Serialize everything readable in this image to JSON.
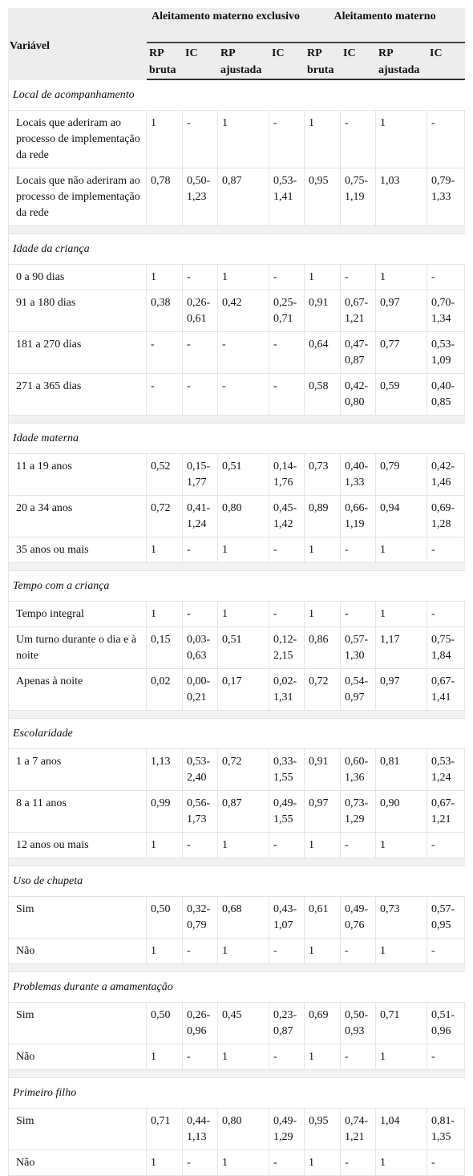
{
  "table": {
    "headers": {
      "variavel": "Variável",
      "group1": "Aleitamento materno exclusivo",
      "group2": "Aleitamento materno",
      "rp_bruta": "RP bruta",
      "ic": "IC",
      "rp_ajustada": "RP ajustada"
    },
    "sections": [
      {
        "title": "Local de acompanhamento",
        "rows": [
          {
            "label": "Locais que aderiram ao processo de implementação da rede",
            "values": [
              "1",
              "-",
              "1",
              "-",
              "1",
              "-",
              "1",
              "-"
            ]
          },
          {
            "label": "Locais que não aderiram ao processo de implementação da rede",
            "values": [
              "0,78",
              "0,50-1,23",
              "0,87",
              "0,53-1,41",
              "0,95",
              "0,75-1,19",
              "1,03",
              "0,79-1,33"
            ]
          }
        ]
      },
      {
        "title": "Idade da criança",
        "rows": [
          {
            "label": "0 a 90 dias",
            "values": [
              "1",
              "-",
              "1",
              "-",
              "1",
              "-",
              "1",
              "-"
            ]
          },
          {
            "label": "91 a 180 dias",
            "values": [
              "0,38",
              "0,26-0,61",
              "0,42",
              "0,25-0,71",
              "0,91",
              "0,67-1,21",
              "0,97",
              "0,70-1,34"
            ]
          },
          {
            "label": "181 a 270 dias",
            "values": [
              "-",
              "-",
              "-",
              "-",
              "0,64",
              "0,47-0,87",
              "0,77",
              "0,53-1,09"
            ]
          },
          {
            "label": "271 a 365 dias",
            "values": [
              "-",
              "-",
              "-",
              "-",
              "0,58",
              "0,42-0,80",
              "0,59",
              "0,40-0,85"
            ]
          }
        ]
      },
      {
        "title": "Idade materna",
        "rows": [
          {
            "label": "11 a 19 anos",
            "values": [
              "0,52",
              "0,15-1,77",
              "0,51",
              "0,14-1,76",
              "0,73",
              "0,40-1,33",
              "0,79",
              "0,42-1,46"
            ]
          },
          {
            "label": "20 a 34 anos",
            "values": [
              "0,72",
              "0,41-1,24",
              "0,80",
              "0,45-1,42",
              "0,89",
              "0,66-1,19",
              "0,94",
              "0,69-1,28"
            ]
          },
          {
            "label": "35 anos ou mais",
            "values": [
              "1",
              "-",
              "1",
              "-",
              "1",
              "-",
              "1",
              "-"
            ]
          }
        ]
      },
      {
        "title": "Tempo com a criança",
        "rows": [
          {
            "label": "Tempo integral",
            "values": [
              "1",
              "-",
              "1",
              "-",
              "1",
              "-",
              "1",
              "-"
            ]
          },
          {
            "label": "Um turno durante o dia e à noite",
            "values": [
              "0,15",
              "0,03-0,63",
              "0,51",
              "0,12-2,15",
              "0,86",
              "0,57-1,30",
              "1,17",
              "0,75-1,84"
            ]
          },
          {
            "label": "Apenas à noite",
            "values": [
              "0,02",
              "0,00-0,21",
              "0,17",
              "0,02-1,31",
              "0,72",
              "0,54-0,97",
              "0,97",
              "0,67-1,41"
            ]
          }
        ]
      },
      {
        "title": "Escolaridade",
        "rows": [
          {
            "label": "1 a 7 anos",
            "values": [
              "1,13",
              "0,53-2,40",
              "0,72",
              "0,33-1,55",
              "0,91",
              "0,60-1,36",
              "0,81",
              "0,53-1,24"
            ]
          },
          {
            "label": "8 a 11 anos",
            "values": [
              "0,99",
              "0,56-1,73",
              "0,87",
              "0,49-1,55",
              "0,97",
              "0,73-1,29",
              "0,90",
              "0,67-1,21"
            ]
          },
          {
            "label": "12 anos ou mais",
            "values": [
              "1",
              "-",
              "1",
              "-",
              "1",
              "-",
              "1",
              "-"
            ]
          }
        ]
      },
      {
        "title": "Uso de chupeta",
        "rows": [
          {
            "label": "Sim",
            "values": [
              "0,50",
              "0,32-0,79",
              "0,68",
              "0,43-1,07",
              "0,61",
              "0,49-0,76",
              "0,73",
              "0,57-0,95"
            ]
          },
          {
            "label": "Não",
            "values": [
              "1",
              "-",
              "1",
              "-",
              "1",
              "-",
              "1",
              "-"
            ]
          }
        ]
      },
      {
        "title": "Problemas durante a amamentação",
        "rows": [
          {
            "label": "Sim",
            "values": [
              "0,50",
              "0,26-0,96",
              "0,45",
              "0,23-0,87",
              "0,69",
              "0,50-0,93",
              "0,71",
              "0,51-0,96"
            ]
          },
          {
            "label": "Não",
            "values": [
              "1",
              "-",
              "1",
              "-",
              "1",
              "-",
              "1",
              "-"
            ]
          }
        ]
      },
      {
        "title": "Primeiro filho",
        "rows": [
          {
            "label": "Sim",
            "values": [
              "0,71",
              "0,44-1,13",
              "0,80",
              "0,49-1,29",
              "0,95",
              "0,74-1,21",
              "1,04",
              "0,81-1,35"
            ]
          },
          {
            "label": "Não",
            "values": [
              "1",
              "-",
              "1",
              "-",
              "1",
              "-",
              "1",
              "-"
            ]
          }
        ]
      }
    ]
  }
}
